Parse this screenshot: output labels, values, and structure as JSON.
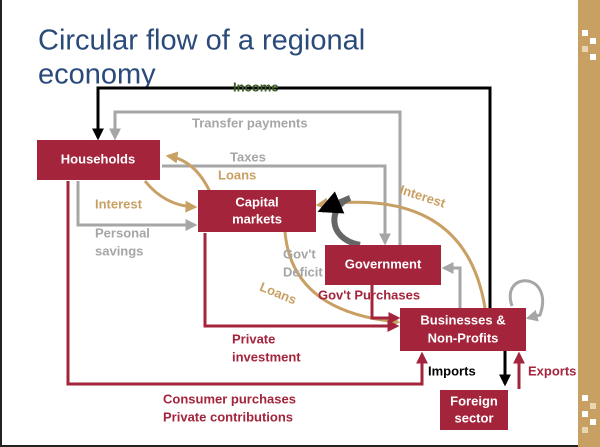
{
  "title": [
    "Circular flow of a regional",
    "economy"
  ],
  "nodes": [
    {
      "label": [
        "Households"
      ]
    },
    {
      "label": [
        "Capital",
        "markets"
      ]
    },
    {
      "label": [
        "Government"
      ]
    },
    {
      "label": [
        "Businesses &",
        "Non-Profits"
      ]
    },
    {
      "label": [
        "Foreign",
        "sector"
      ]
    }
  ],
  "flows": [
    {
      "label": [
        "Income"
      ]
    },
    {
      "label": [
        "Transfer payments"
      ]
    },
    {
      "label": [
        "Taxes"
      ]
    },
    {
      "label": [
        "Loans"
      ]
    },
    {
      "label": [
        "Interest"
      ]
    },
    {
      "label": [
        "Personal",
        "savings"
      ]
    },
    {
      "label": [
        "Interest"
      ]
    },
    {
      "label": [
        "Gov't",
        "Deficit"
      ]
    },
    {
      "label": [
        "Loans"
      ]
    },
    {
      "label": [
        "Gov't Purchases"
      ]
    },
    {
      "label": [
        "Private",
        "investment"
      ]
    },
    {
      "label": [
        "Imports"
      ]
    },
    {
      "label": [
        "Exports"
      ]
    },
    {
      "label": [
        "Consumer purchases",
        "Private contributions"
      ]
    }
  ]
}
